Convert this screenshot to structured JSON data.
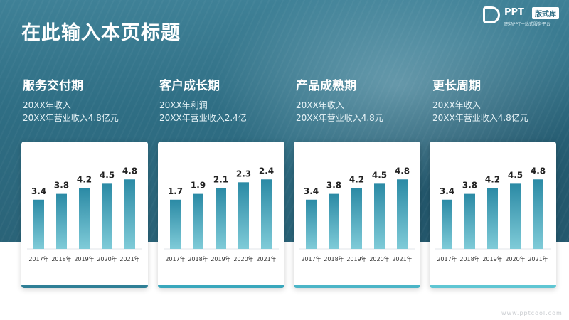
{
  "header": {
    "title": "在此输入本页标题"
  },
  "logo": {
    "text": "PPT",
    "badge": "版式库",
    "slogan": "职场PPT一站式服务平台"
  },
  "footer": {
    "url": "www.pptcool.com"
  },
  "colors": {
    "bar_top": "#2b8aa5",
    "bar_bottom": "#7fcbd8",
    "card_border": "#2f8aa3"
  },
  "columns": [
    {
      "title": "服务交付期",
      "lines": [
        "20XX年收入",
        "20XX年营业收入4.8亿元"
      ],
      "card_border": "#2f7f96"
    },
    {
      "title": "客户成长期",
      "lines": [
        "20XX年利润",
        "20XX年营业收入2.4亿"
      ],
      "card_border": "#39a7bc"
    },
    {
      "title": "产品成熟期",
      "lines": [
        "20XX年收入",
        "20XX年营业收入4.8元"
      ],
      "card_border": "#4bb5c7"
    },
    {
      "title": "更长周期",
      "lines": [
        "20XX年收入",
        "20XX年营业收入4.8亿元"
      ],
      "card_border": "#5fc6d3"
    }
  ],
  "chart_data": [
    {
      "type": "bar",
      "categories": [
        "2017年",
        "2018年",
        "2019年",
        "2020年",
        "2021年"
      ],
      "values": [
        3.4,
        3.8,
        4.2,
        4.5,
        4.8
      ],
      "ylim": [
        0,
        5.5
      ]
    },
    {
      "type": "bar",
      "categories": [
        "2017年",
        "2018年",
        "2019年",
        "2020年",
        "2021年"
      ],
      "values": [
        1.7,
        1.9,
        2.1,
        2.3,
        2.4
      ],
      "ylim": [
        0,
        2.75
      ]
    },
    {
      "type": "bar",
      "categories": [
        "2017年",
        "2018年",
        "2019年",
        "2020年",
        "2021年"
      ],
      "values": [
        3.4,
        3.8,
        4.2,
        4.5,
        4.8
      ],
      "ylim": [
        0,
        5.5
      ]
    },
    {
      "type": "bar",
      "categories": [
        "2017年",
        "2018年",
        "2019年",
        "2020年",
        "2021年"
      ],
      "values": [
        3.4,
        3.8,
        4.2,
        4.5,
        4.8
      ],
      "ylim": [
        0,
        5.5
      ]
    }
  ]
}
